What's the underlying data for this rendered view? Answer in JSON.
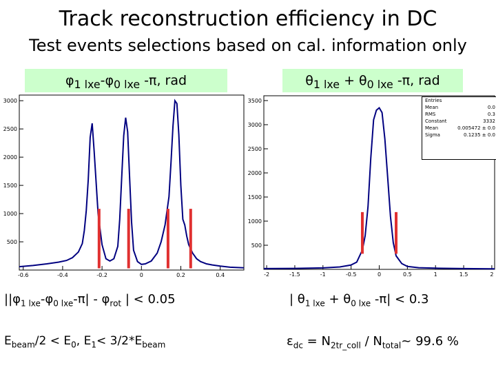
{
  "slide": {
    "title": "Track reconstruction efficiency in DC",
    "subtitle": "Test events selections based on cal. information only"
  },
  "panels": {
    "left_label": {
      "phi": "φ",
      "sub1": "1 lxe",
      "mid": "-φ",
      "sub0": "0 lxe",
      "tail": " -π, rad"
    },
    "right_label": {
      "theta": "θ",
      "sub1": "1 lxe",
      "mid": " + θ",
      "sub0": "0 lxe",
      "tail": " -π, rad"
    }
  },
  "stats_box": {
    "rows": [
      {
        "name": "Entries",
        "value": ""
      },
      {
        "name": "Mean",
        "value": "0.0"
      },
      {
        "name": "RMS",
        "value": "0.3"
      },
      {
        "name": "Constant",
        "value": "3332"
      },
      {
        "name": "Mean",
        "value": "0.005472 ± 0.0"
      },
      {
        "name": "Sigma",
        "value": "0.1235 ± 0.0"
      }
    ]
  },
  "cuts": {
    "cut1": {
      "a": "||φ",
      "s1": "1 lxe",
      "b": "-φ",
      "s2": "0 lxe",
      "c": "-π| - φ",
      "s3": "rot",
      "d": " | < 0.05"
    },
    "cut2": {
      "a": "| θ",
      "s1": "1 lxe",
      "b": " + θ",
      "s2": "0 lxe",
      "c": " -π| < 0.3"
    },
    "cut3": {
      "a": "E",
      "s1": "beam",
      "b": "/2 < E",
      "s2": "0",
      "c": ", E",
      "s3": "1",
      "d": "< 3/2*E",
      "s4": "beam"
    },
    "cut4": {
      "a": "ε",
      "s1": "dc",
      "b": " = N",
      "s2": "2tr_coll",
      "c": " / N",
      "s3": "total",
      "d": "~ 99.6 %"
    }
  },
  "chart_data": [
    {
      "type": "line",
      "title": "",
      "xlabel": "",
      "ylabel": "",
      "xlim": [
        -0.62,
        0.52
      ],
      "ylim": [
        0,
        3100
      ],
      "x_ticks": [
        "-0.6",
        "-0.4",
        "-0.2",
        "0",
        "0.2",
        "0.4"
      ],
      "y_ticks": [
        "500",
        "1000",
        "1500",
        "2000",
        "2500",
        "3000"
      ],
      "series": [
        {
          "x": [
            -0.62,
            -0.55,
            -0.48,
            -0.42,
            -0.38,
            -0.35,
            -0.32,
            -0.3,
            -0.29,
            -0.28,
            -0.27,
            -0.26,
            -0.25,
            -0.24,
            -0.22,
            -0.2,
            -0.18,
            -0.16,
            -0.14,
            -0.12,
            -0.11,
            -0.1,
            -0.09,
            -0.08,
            -0.07,
            -0.06,
            -0.05,
            -0.04,
            -0.02,
            0,
            0.02,
            0.05,
            0.08,
            0.1,
            0.12,
            0.14,
            0.15,
            0.16,
            0.17,
            0.18,
            0.19,
            0.2,
            0.21,
            0.22,
            0.23,
            0.24,
            0.26,
            0.28,
            0.3,
            0.33,
            0.36,
            0.4,
            0.45,
            0.52
          ],
          "y": [
            60,
            80,
            110,
            140,
            170,
            220,
            320,
            470,
            700,
            1050,
            1600,
            2350,
            2600,
            2100,
            1000,
            450,
            200,
            160,
            200,
            420,
            900,
            1650,
            2380,
            2700,
            2450,
            1650,
            850,
            350,
            150,
            100,
            110,
            160,
            300,
            500,
            800,
            1300,
            1900,
            2550,
            3000,
            2950,
            2400,
            1500,
            900,
            800,
            600,
            450,
            300,
            200,
            150,
            110,
            90,
            70,
            50,
            40
          ]
        }
      ],
      "markers_x": [
        -0.215,
        -0.065,
        0.135,
        0.25
      ]
    },
    {
      "type": "line",
      "title": "",
      "xlabel": "",
      "ylabel": "",
      "xlim": [
        -2.05,
        2.05
      ],
      "ylim": [
        0,
        3600
      ],
      "x_ticks": [
        "-2",
        "-1.5",
        "-1",
        "-0.5",
        "0",
        "0.5",
        "1",
        "1.5",
        "2"
      ],
      "y_ticks": [
        "500",
        "1000",
        "1500",
        "2000",
        "2500",
        "3000",
        "3500"
      ],
      "series": [
        {
          "x": [
            -2.05,
            -1.5,
            -1.0,
            -0.7,
            -0.5,
            -0.4,
            -0.3,
            -0.25,
            -0.2,
            -0.15,
            -0.1,
            -0.05,
            0,
            0.05,
            0.1,
            0.15,
            0.2,
            0.25,
            0.3,
            0.4,
            0.5,
            0.7,
            1.0,
            1.5,
            2.05
          ],
          "y": [
            15,
            20,
            30,
            50,
            90,
            150,
            400,
            700,
            1300,
            2300,
            3100,
            3300,
            3350,
            3250,
            2700,
            1900,
            1100,
            550,
            280,
            120,
            60,
            35,
            25,
            15,
            10
          ]
        }
      ],
      "markers_x": [
        -0.3,
        0.3
      ]
    }
  ]
}
